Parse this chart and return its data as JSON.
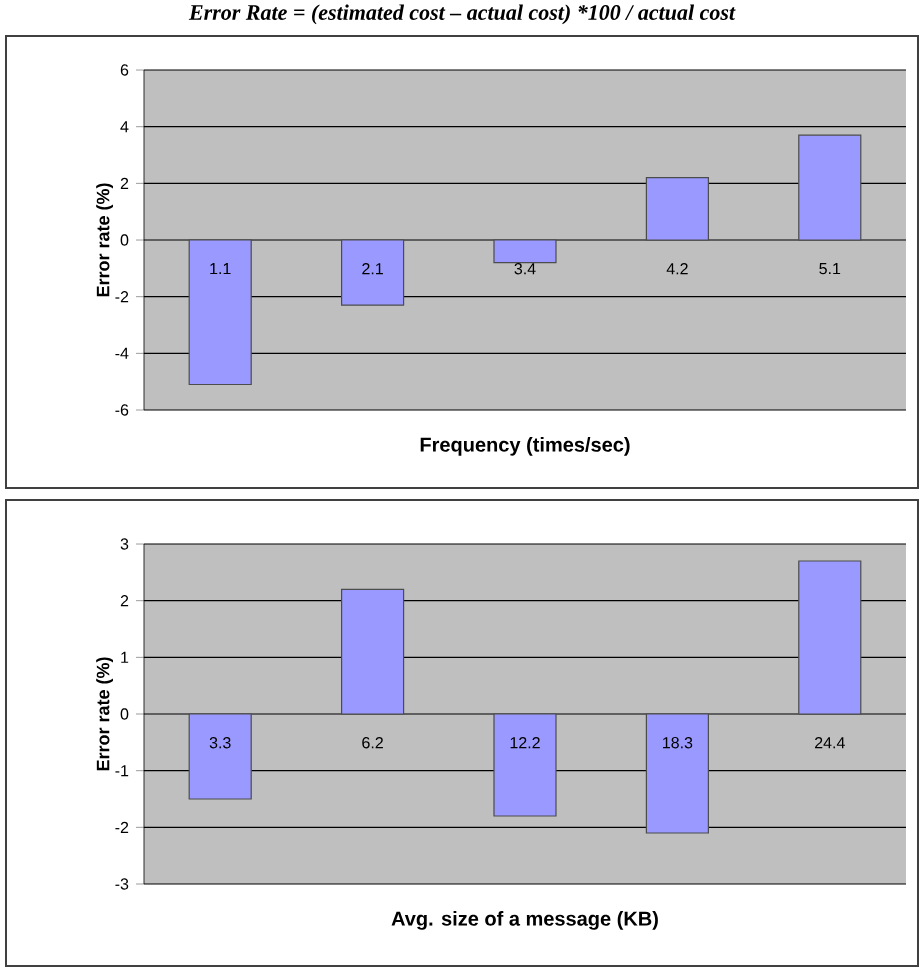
{
  "chart_data": [
    {
      "type": "bar",
      "title": "Error Rate = (estimated cost – actual cost) *100 / actual cost",
      "xlabel": "Frequency (times/sec)",
      "ylabel": "Error rate (%)",
      "categories": [
        "1.1",
        "2.1",
        "3.4",
        "4.2",
        "5.1"
      ],
      "values": [
        -5.1,
        -2.3,
        -0.8,
        2.2,
        3.7
      ],
      "color": "#9999ff",
      "ylim": [
        -6,
        6
      ],
      "yticks": [
        -6,
        -4,
        -2,
        0,
        2,
        4,
        6
      ],
      "grid": "y"
    },
    {
      "type": "bar",
      "xlabel": "Avg. size of a message (KB)",
      "ylabel": "Error rate (%)",
      "categories": [
        "3.3",
        "6.2",
        "12.2",
        "18.3",
        "24.4"
      ],
      "values": [
        -1.5,
        2.2,
        -1.8,
        -2.1,
        2.7
      ],
      "color": "#9999ff",
      "ylim": [
        -3,
        3
      ],
      "yticks": [
        -3,
        -2,
        -1,
        0,
        1,
        2,
        3
      ],
      "grid": "y"
    }
  ]
}
